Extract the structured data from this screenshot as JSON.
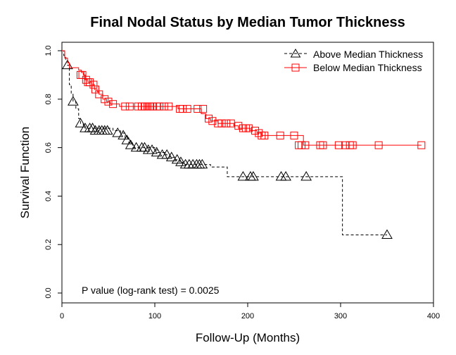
{
  "chart_data": {
    "type": "line",
    "title": "Final Nodal Status by Median Tumor Thickness",
    "xlabel": "Follow-Up (Months)",
    "ylabel": "Survival Function",
    "xlim": [
      0,
      400
    ],
    "ylim": [
      0.0,
      1.0
    ],
    "x_ticks": [
      0,
      100,
      200,
      300,
      400
    ],
    "y_ticks": [
      0.0,
      0.2,
      0.4,
      0.6,
      0.8,
      1.0
    ],
    "x_tick_labels": [
      "0",
      "100",
      "200",
      "300",
      "400"
    ],
    "y_tick_labels": [
      "0.0",
      "0.2",
      "0.4",
      "0.6",
      "0.8",
      "1.0"
    ],
    "grid": false,
    "legend_position": "top-right",
    "annotation": "P value (log-rank test) = 0.0025",
    "series": [
      {
        "name": "Above Median Thickness",
        "color": "#000000",
        "line_style": "dashed",
        "marker": "triangle",
        "steps": [
          [
            0,
            1.0
          ],
          [
            2,
            0.98
          ],
          [
            4,
            0.96
          ],
          [
            6,
            0.94
          ],
          [
            8,
            0.86
          ],
          [
            10,
            0.82
          ],
          [
            12,
            0.79
          ],
          [
            15,
            0.76
          ],
          [
            18,
            0.72
          ],
          [
            20,
            0.7
          ],
          [
            23,
            0.69
          ],
          [
            25,
            0.68
          ],
          [
            55,
            0.67
          ],
          [
            63,
            0.66
          ],
          [
            68,
            0.64
          ],
          [
            72,
            0.62
          ],
          [
            76,
            0.6
          ],
          [
            100,
            0.59
          ],
          [
            103,
            0.58
          ],
          [
            112,
            0.57
          ],
          [
            116,
            0.56
          ],
          [
            122,
            0.55
          ],
          [
            127,
            0.54
          ],
          [
            130,
            0.53
          ],
          [
            160,
            0.52
          ],
          [
            178,
            0.48
          ],
          [
            200,
            0.48
          ],
          [
            300,
            0.48
          ],
          [
            302,
            0.24
          ],
          [
            350,
            0.24
          ]
        ],
        "censored": [
          [
            6,
            0.94
          ],
          [
            12,
            0.79
          ],
          [
            20,
            0.7
          ],
          [
            25,
            0.68
          ],
          [
            30,
            0.68
          ],
          [
            33,
            0.68
          ],
          [
            36,
            0.67
          ],
          [
            40,
            0.67
          ],
          [
            43,
            0.67
          ],
          [
            46,
            0.67
          ],
          [
            49,
            0.67
          ],
          [
            60,
            0.66
          ],
          [
            66,
            0.65
          ],
          [
            70,
            0.63
          ],
          [
            74,
            0.61
          ],
          [
            80,
            0.6
          ],
          [
            86,
            0.6
          ],
          [
            89,
            0.6
          ],
          [
            93,
            0.59
          ],
          [
            97,
            0.59
          ],
          [
            102,
            0.58
          ],
          [
            108,
            0.57
          ],
          [
            113,
            0.57
          ],
          [
            118,
            0.56
          ],
          [
            124,
            0.55
          ],
          [
            128,
            0.54
          ],
          [
            133,
            0.53
          ],
          [
            137,
            0.53
          ],
          [
            141,
            0.53
          ],
          [
            145,
            0.53
          ],
          [
            148,
            0.53
          ],
          [
            151,
            0.53
          ],
          [
            195,
            0.48
          ],
          [
            203,
            0.48
          ],
          [
            206,
            0.48
          ],
          [
            236,
            0.48
          ],
          [
            241,
            0.48
          ],
          [
            263,
            0.48
          ],
          [
            350,
            0.24
          ]
        ]
      },
      {
        "name": "Below Median Thickness",
        "color": "#ff0000",
        "line_style": "solid",
        "marker": "square",
        "steps": [
          [
            0,
            1.0
          ],
          [
            3,
            0.97
          ],
          [
            6,
            0.95
          ],
          [
            8,
            0.93
          ],
          [
            18,
            0.92
          ],
          [
            21,
            0.91
          ],
          [
            23,
            0.9
          ],
          [
            25,
            0.88
          ],
          [
            28,
            0.87
          ],
          [
            32,
            0.86
          ],
          [
            35,
            0.84
          ],
          [
            38,
            0.83
          ],
          [
            40,
            0.82
          ],
          [
            44,
            0.8
          ],
          [
            48,
            0.79
          ],
          [
            52,
            0.78
          ],
          [
            62,
            0.77
          ],
          [
            125,
            0.76
          ],
          [
            150,
            0.74
          ],
          [
            155,
            0.72
          ],
          [
            160,
            0.71
          ],
          [
            168,
            0.7
          ],
          [
            185,
            0.69
          ],
          [
            190,
            0.68
          ],
          [
            203,
            0.67
          ],
          [
            210,
            0.66
          ],
          [
            215,
            0.65
          ],
          [
            260,
            0.61
          ],
          [
            387,
            0.61
          ]
        ],
        "censored": [
          [
            20,
            0.9
          ],
          [
            22,
            0.9
          ],
          [
            26,
            0.88
          ],
          [
            28,
            0.87
          ],
          [
            30,
            0.87
          ],
          [
            34,
            0.86
          ],
          [
            36,
            0.84
          ],
          [
            40,
            0.82
          ],
          [
            46,
            0.8
          ],
          [
            50,
            0.79
          ],
          [
            55,
            0.78
          ],
          [
            68,
            0.77
          ],
          [
            73,
            0.77
          ],
          [
            82,
            0.77
          ],
          [
            86,
            0.77
          ],
          [
            89,
            0.77
          ],
          [
            92,
            0.77
          ],
          [
            95,
            0.77
          ],
          [
            98,
            0.77
          ],
          [
            102,
            0.77
          ],
          [
            105,
            0.77
          ],
          [
            110,
            0.77
          ],
          [
            115,
            0.77
          ],
          [
            127,
            0.76
          ],
          [
            130,
            0.76
          ],
          [
            135,
            0.76
          ],
          [
            146,
            0.76
          ],
          [
            152,
            0.76
          ],
          [
            158,
            0.72
          ],
          [
            162,
            0.71
          ],
          [
            168,
            0.7
          ],
          [
            172,
            0.7
          ],
          [
            177,
            0.7
          ],
          [
            182,
            0.7
          ],
          [
            190,
            0.69
          ],
          [
            195,
            0.68
          ],
          [
            198,
            0.68
          ],
          [
            201,
            0.68
          ],
          [
            208,
            0.67
          ],
          [
            212,
            0.66
          ],
          [
            215,
            0.65
          ],
          [
            218,
            0.65
          ],
          [
            235,
            0.65
          ],
          [
            250,
            0.65
          ],
          [
            255,
            0.61
          ],
          [
            258,
            0.61
          ],
          [
            262,
            0.61
          ],
          [
            278,
            0.61
          ],
          [
            281,
            0.61
          ],
          [
            298,
            0.61
          ],
          [
            305,
            0.61
          ],
          [
            310,
            0.61
          ],
          [
            313,
            0.61
          ],
          [
            341,
            0.61
          ],
          [
            387,
            0.61
          ]
        ]
      }
    ]
  }
}
